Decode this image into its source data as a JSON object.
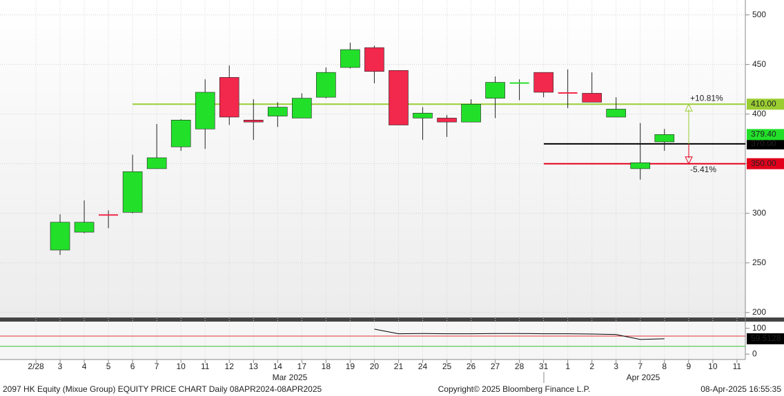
{
  "chart_data": [
    {
      "type": "candlestick",
      "categories": [
        "2/28",
        "3",
        "4",
        "5",
        "6",
        "7",
        "10",
        "11",
        "12",
        "13",
        "14",
        "17",
        "18",
        "19",
        "20",
        "21",
        "24",
        "25",
        "26",
        "27",
        "28",
        "31",
        "1",
        "2",
        "3",
        "7",
        "8",
        "9",
        "10",
        "11"
      ],
      "x_groups": [
        "Mar 2025",
        "Apr 2025"
      ],
      "open": [
        null,
        263,
        281,
        299,
        301,
        345,
        367,
        385,
        437,
        394,
        398,
        396,
        417,
        447,
        467,
        444,
        396,
        396,
        392,
        416,
        431,
        442,
        422,
        421,
        397,
        345,
        372,
        null,
        null,
        null
      ],
      "high": [
        null,
        299,
        313,
        303,
        359,
        390,
        395,
        435,
        449,
        415,
        412,
        421,
        447,
        472,
        469,
        444,
        407,
        399,
        415,
        438,
        435,
        442,
        445,
        442,
        417,
        391,
        385,
        null,
        null,
        null
      ],
      "low": [
        null,
        258,
        280,
        285,
        300,
        345,
        363,
        365,
        389,
        374,
        387,
        396,
        416,
        446,
        431,
        389,
        374,
        377,
        392,
        396,
        414,
        417,
        406,
        412,
        397,
        334,
        363,
        null,
        null,
        null
      ],
      "close": [
        null,
        291,
        291,
        298,
        342,
        356,
        394,
        422,
        397,
        392,
        407,
        416,
        442,
        465,
        443,
        389,
        401,
        392,
        410,
        432,
        432,
        422,
        421,
        412,
        405,
        351,
        379.4,
        null,
        null,
        null
      ],
      "last_label": "379.40",
      "up_color": "#22e02a",
      "down_color": "#f2284c",
      "ylim": [
        195,
        515
      ],
      "yticks": [
        200,
        250,
        300,
        350,
        400,
        450,
        500
      ],
      "grid": true,
      "hlines": [
        {
          "value": 410,
          "label": "410.00",
          "color": "#9acd32"
        },
        {
          "value": 370,
          "label": "370.00",
          "color": "#000000"
        },
        {
          "value": 350,
          "label": "350.00",
          "color": "#e3001b"
        }
      ],
      "annotations": [
        "+10.81%",
        "-5.41%"
      ]
    },
    {
      "type": "line",
      "values": [
        null,
        null,
        null,
        null,
        null,
        null,
        null,
        null,
        null,
        null,
        null,
        null,
        null,
        null,
        97,
        79,
        80,
        79,
        79,
        80,
        80,
        79,
        79,
        78,
        76,
        57,
        59.5128,
        null,
        null,
        null
      ],
      "color": "#000000",
      "ylim": [
        -21,
        126
      ],
      "yticks": [
        0,
        100
      ],
      "levels": [
        {
          "value": 70,
          "color": "#e03030"
        },
        {
          "value": 30,
          "color": "#30c030"
        }
      ]
    },
    {
      "type": "footer",
      "left": "2097 HK Equity (Mixue Group) EQUITY PRICE CHART  Daily 08APR2024-08APR2025",
      "center": "Copyright© 2025 Bloomberg Finance L.P.",
      "right": "08-Apr-2025 16:55:35"
    }
  ]
}
